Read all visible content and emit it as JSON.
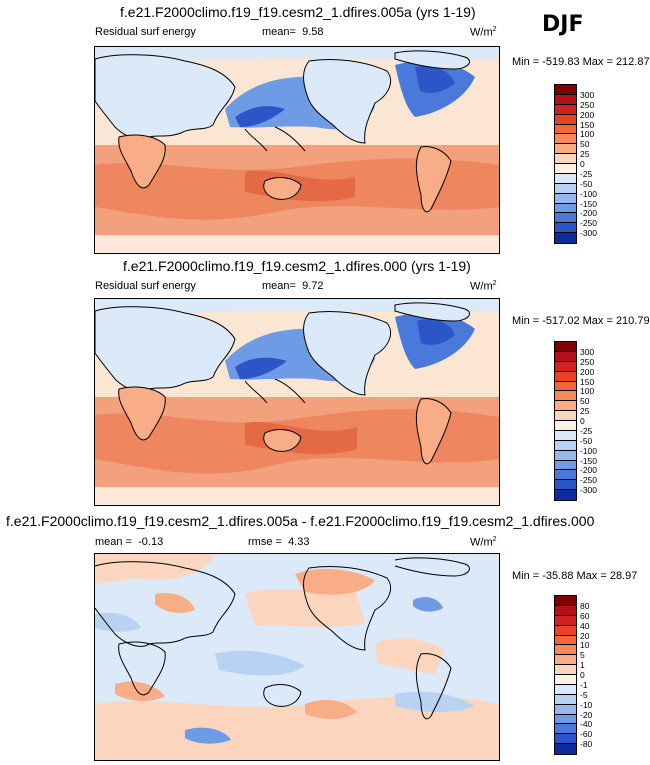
{
  "season": "DJF",
  "panels": [
    {
      "title": "f.e21.F2000climo.f19_f19.cesm2_1.dfires.005a (yrs 1-19)",
      "left_label": "Residual surf energy",
      "stat_label": "mean=",
      "stat_value": "9.58",
      "units": "W/m",
      "units_sup": "2",
      "minmax": "Min = -519.83 Max = 212.87",
      "colorbar": {
        "labels": [
          "300",
          "250",
          "200",
          "150",
          "100",
          "50",
          "25",
          "0",
          "-25",
          "-50",
          "-100",
          "-150",
          "-200",
          "-250",
          "-300"
        ],
        "colors": [
          "#7f0000",
          "#b0111a",
          "#d32020",
          "#e84326",
          "#f2663a",
          "#f78a5b",
          "#f9ad86",
          "#fcd5bf",
          "#fdf1e8",
          "#dce9f8",
          "#b9d2f2",
          "#94b8ec",
          "#6f9ae6",
          "#4a79dc",
          "#2c56c8",
          "#0f2ba0"
        ]
      }
    },
    {
      "title": "f.e21.F2000climo.f19_f19.cesm2_1.dfires.000 (yrs 1-19)",
      "left_label": "Residual surf energy",
      "stat_label": "mean=",
      "stat_value": "9.72",
      "units": "W/m",
      "units_sup": "2",
      "minmax": "Min = -517.02 Max = 210.79",
      "colorbar": {
        "labels": [
          "300",
          "250",
          "200",
          "150",
          "100",
          "50",
          "25",
          "0",
          "-25",
          "-50",
          "-100",
          "-150",
          "-200",
          "-250",
          "-300"
        ],
        "colors": [
          "#7f0000",
          "#b0111a",
          "#d32020",
          "#e84326",
          "#f2663a",
          "#f78a5b",
          "#f9ad86",
          "#fcd5bf",
          "#fdf1e8",
          "#dce9f8",
          "#b9d2f2",
          "#94b8ec",
          "#6f9ae6",
          "#4a79dc",
          "#2c56c8",
          "#0f2ba0"
        ]
      }
    },
    {
      "title": "f.e21.F2000climo.f19_f19.cesm2_1.dfires.005a - f.e21.F2000climo.f19_f19.cesm2_1.dfires.000",
      "left_label": "mean =",
      "left_value": "-0.13",
      "stat_label": "rmse =",
      "stat_value": "4.33",
      "units": "W/m",
      "units_sup": "2",
      "minmax": "Min = -35.88 Max = 28.97",
      "colorbar": {
        "labels": [
          "80",
          "60",
          "40",
          "20",
          "10",
          "5",
          "1",
          "0",
          "-1",
          "-5",
          "-10",
          "-20",
          "-40",
          "-60",
          "-80"
        ],
        "colors": [
          "#7f0000",
          "#b0111a",
          "#d32020",
          "#e84326",
          "#f2663a",
          "#f78a5b",
          "#f9ad86",
          "#fcd5bf",
          "#fdf1e8",
          "#dce9f8",
          "#b9d2f2",
          "#94b8ec",
          "#6f9ae6",
          "#4a79dc",
          "#2c56c8",
          "#0f2ba0"
        ]
      }
    }
  ]
}
